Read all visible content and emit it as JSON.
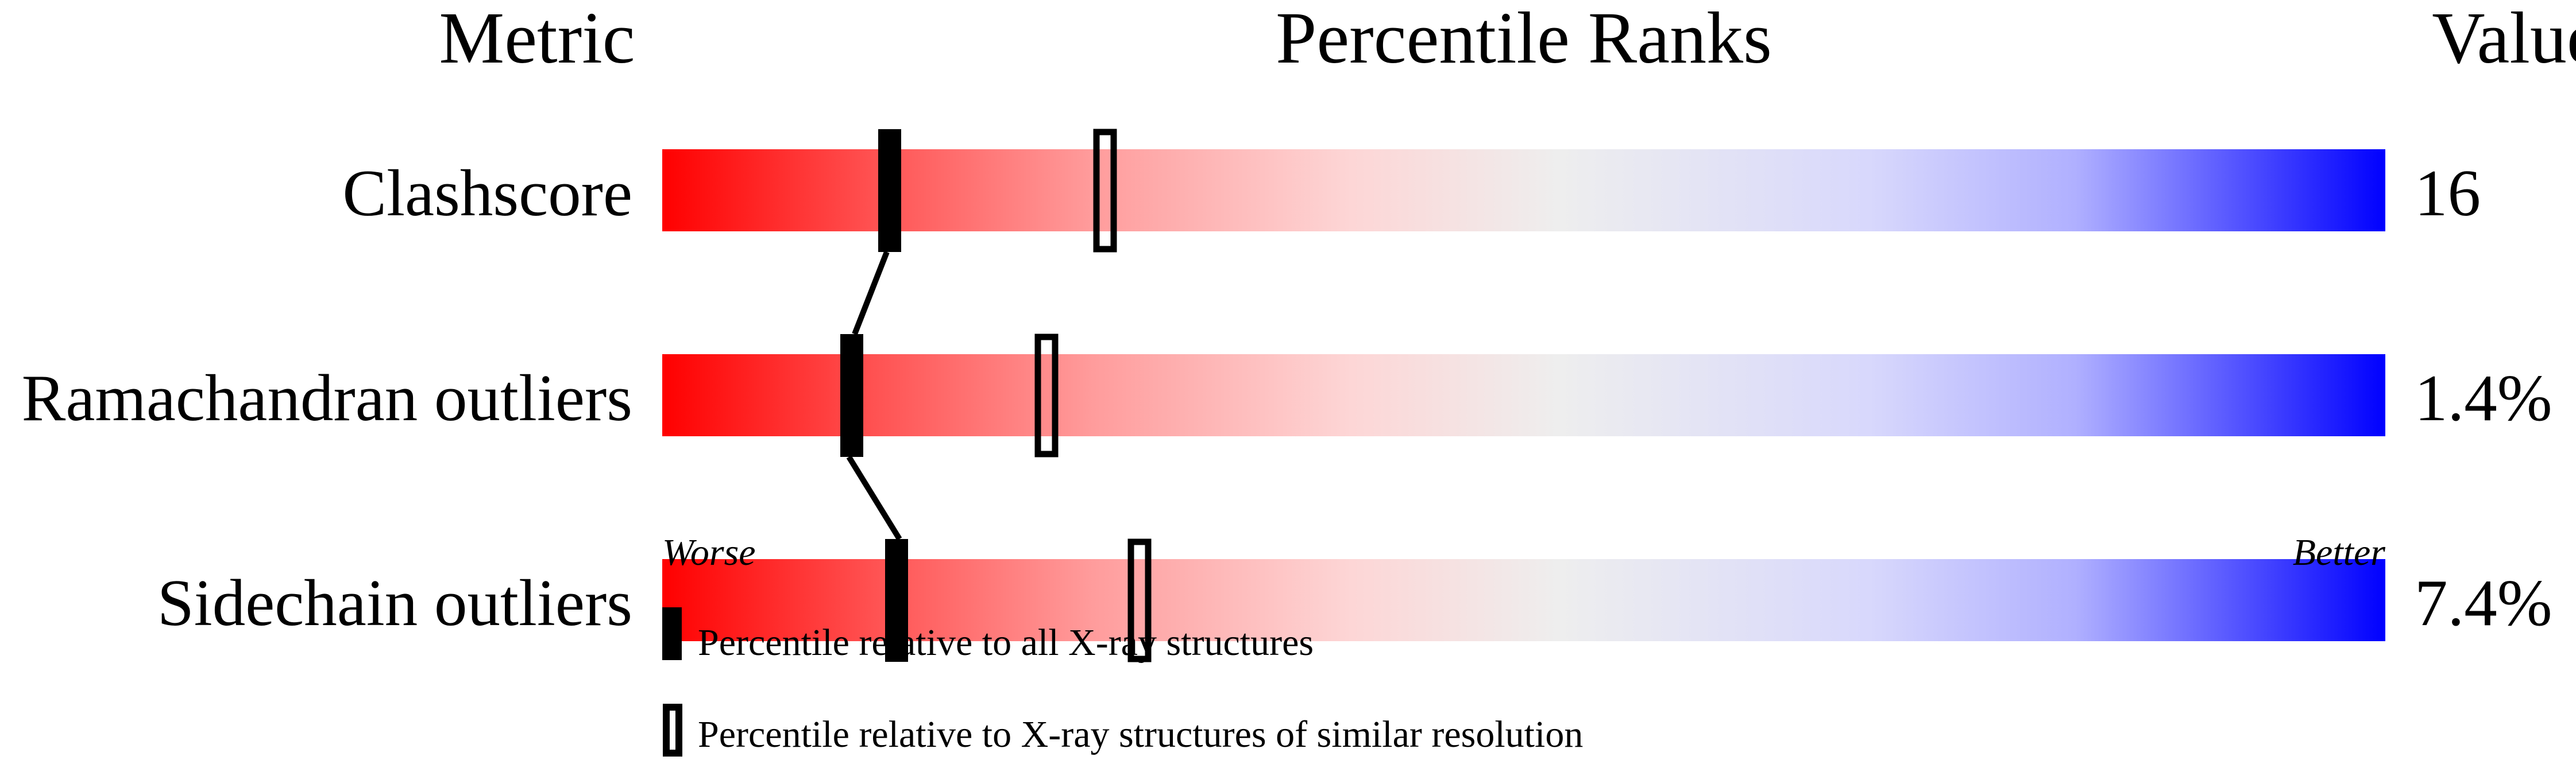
{
  "chart_data": {
    "type": "bar",
    "headers": {
      "metric": "Metric",
      "ranks": "Percentile Ranks",
      "value": "Value"
    },
    "xlim": [
      0,
      100
    ],
    "metrics": [
      {
        "name": "Clashscore",
        "value": "16",
        "percentile_all": 13.2,
        "percentile_similar": 25.7
      },
      {
        "name": "Ramachandran outliers",
        "value": "1.4%",
        "percentile_all": 11.0,
        "percentile_similar": 22.3
      },
      {
        "name": "Sidechain outliers",
        "value": "7.4%",
        "percentile_all": 13.6,
        "percentile_similar": 27.7
      }
    ],
    "axis_labels": {
      "left": "Worse",
      "right": "Better"
    },
    "legend": {
      "all": "Percentile relative to all X-ray structures",
      "similar": "Percentile relative to X-ray structures of similar resolution"
    },
    "colors": {
      "worse": "#ff0000",
      "middle": "#eeeeee",
      "better_light": "#d6d6ff",
      "better": "#0000ff",
      "marker": "#000000"
    }
  }
}
